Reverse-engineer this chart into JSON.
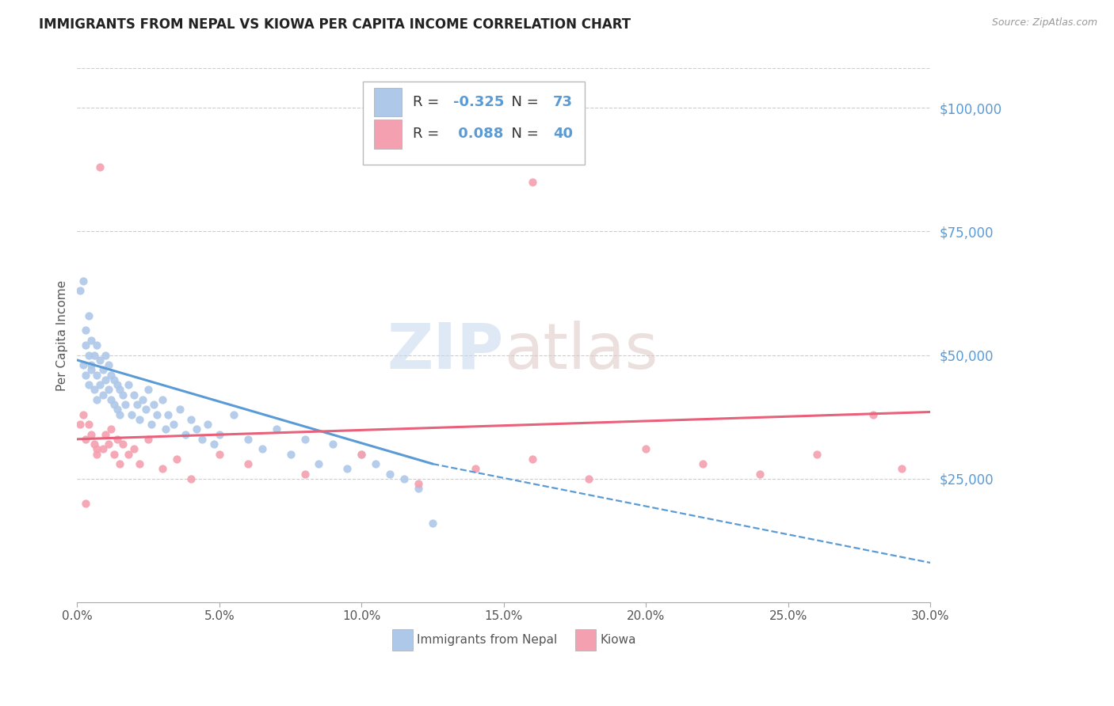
{
  "title": "IMMIGRANTS FROM NEPAL VS KIOWA PER CAPITA INCOME CORRELATION CHART",
  "source_text": "Source: ZipAtlas.com",
  "ylabel": "Per Capita Income",
  "xlim": [
    0.0,
    0.3
  ],
  "ylim": [
    0,
    108000
  ],
  "yticks": [
    25000,
    50000,
    75000,
    100000
  ],
  "ytick_labels": [
    "$25,000",
    "$50,000",
    "$75,000",
    "$100,000"
  ],
  "xtick_labels": [
    "0.0%",
    "5.0%",
    "10.0%",
    "15.0%",
    "20.0%",
    "25.0%",
    "30.0%"
  ],
  "xticks": [
    0.0,
    0.05,
    0.1,
    0.15,
    0.2,
    0.25,
    0.3
  ],
  "legend1_label": "Immigrants from Nepal",
  "legend2_label": "Kiowa",
  "R1": -0.325,
  "N1": 73,
  "R2": 0.088,
  "N2": 40,
  "color_nepal": "#adc8e8",
  "color_nepal_line": "#5b9bd5",
  "color_kiowa": "#f4a0b0",
  "color_kiowa_line": "#e8607a",
  "background_color": "#ffffff",
  "title_fontsize": 12,
  "nepal_scatter_x": [
    0.001,
    0.002,
    0.002,
    0.003,
    0.003,
    0.003,
    0.004,
    0.004,
    0.004,
    0.005,
    0.005,
    0.005,
    0.006,
    0.006,
    0.007,
    0.007,
    0.007,
    0.008,
    0.008,
    0.009,
    0.009,
    0.01,
    0.01,
    0.011,
    0.011,
    0.012,
    0.012,
    0.013,
    0.013,
    0.014,
    0.014,
    0.015,
    0.015,
    0.016,
    0.017,
    0.018,
    0.019,
    0.02,
    0.021,
    0.022,
    0.023,
    0.024,
    0.025,
    0.026,
    0.027,
    0.028,
    0.03,
    0.031,
    0.032,
    0.034,
    0.036,
    0.038,
    0.04,
    0.042,
    0.044,
    0.046,
    0.048,
    0.05,
    0.055,
    0.06,
    0.065,
    0.07,
    0.075,
    0.08,
    0.085,
    0.09,
    0.095,
    0.1,
    0.105,
    0.11,
    0.115,
    0.12,
    0.125
  ],
  "nepal_scatter_y": [
    63000,
    65000,
    48000,
    52000,
    46000,
    55000,
    50000,
    44000,
    58000,
    48000,
    53000,
    47000,
    50000,
    43000,
    52000,
    46000,
    41000,
    49000,
    44000,
    47000,
    42000,
    50000,
    45000,
    48000,
    43000,
    46000,
    41000,
    45000,
    40000,
    44000,
    39000,
    43000,
    38000,
    42000,
    40000,
    44000,
    38000,
    42000,
    40000,
    37000,
    41000,
    39000,
    43000,
    36000,
    40000,
    38000,
    41000,
    35000,
    38000,
    36000,
    39000,
    34000,
    37000,
    35000,
    33000,
    36000,
    32000,
    34000,
    38000,
    33000,
    31000,
    35000,
    30000,
    33000,
    28000,
    32000,
    27000,
    30000,
    28000,
    26000,
    25000,
    23000,
    16000
  ],
  "kiowa_scatter_x": [
    0.001,
    0.002,
    0.003,
    0.004,
    0.005,
    0.006,
    0.007,
    0.008,
    0.009,
    0.01,
    0.011,
    0.012,
    0.013,
    0.014,
    0.015,
    0.016,
    0.018,
    0.02,
    0.022,
    0.025,
    0.03,
    0.035,
    0.04,
    0.05,
    0.06,
    0.08,
    0.1,
    0.12,
    0.14,
    0.16,
    0.18,
    0.2,
    0.22,
    0.24,
    0.26,
    0.28,
    0.29,
    0.003,
    0.007,
    0.16
  ],
  "kiowa_scatter_y": [
    36000,
    38000,
    33000,
    36000,
    34000,
    32000,
    30000,
    88000,
    31000,
    34000,
    32000,
    35000,
    30000,
    33000,
    28000,
    32000,
    30000,
    31000,
    28000,
    33000,
    27000,
    29000,
    25000,
    30000,
    28000,
    26000,
    30000,
    24000,
    27000,
    29000,
    25000,
    31000,
    28000,
    26000,
    30000,
    38000,
    27000,
    20000,
    31000,
    85000
  ]
}
